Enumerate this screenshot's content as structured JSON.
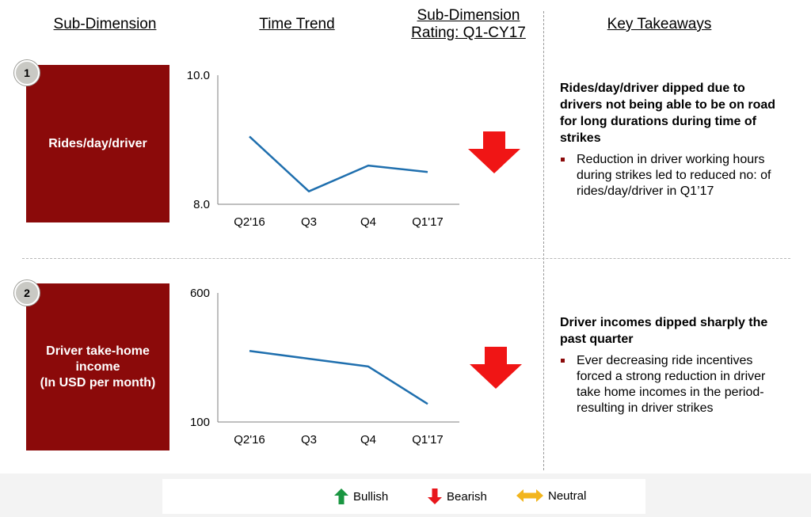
{
  "headers": {
    "sub_dimension": "Sub-Dimension",
    "time_trend": "Time Trend",
    "rating_line1": "Sub-Dimension",
    "rating_line2": "Rating: Q1-CY17",
    "key_takeaways": "Key Takeaways"
  },
  "rows": [
    {
      "number": "1",
      "label": "Rides/day/driver",
      "rating": "Bearish",
      "takeaway_title": "Rides/day/driver dipped due to drivers not being able to be on road for long durations during time of strikes",
      "takeaway_bullet": "Reduction in driver working hours during strikes led to reduced no: of rides/day/driver in Q1’17"
    },
    {
      "number": "2",
      "label": "Driver take-home income\n(In USD per month)",
      "rating": "Bearish",
      "takeaway_title": "Driver incomes dipped sharply the past quarter",
      "takeaway_bullet": "Ever decreasing ride incentives forced a strong reduction in driver take home incomes in the period- resulting in driver strikes"
    }
  ],
  "chart_data": [
    {
      "type": "line",
      "categories": [
        "Q2'16",
        "Q3",
        "Q4",
        "Q1'17"
      ],
      "series": [
        {
          "values": [
            9.05,
            8.2,
            8.6,
            8.5
          ]
        }
      ],
      "ylim": [
        8.0,
        10.0
      ],
      "yticks": [
        "10.0",
        "8.0"
      ],
      "line_color": "#1f6fae",
      "grid": false
    },
    {
      "type": "line",
      "categories": [
        "Q2'16",
        "Q3",
        "Q4",
        "Q1'17"
      ],
      "series": [
        {
          "values": [
            375,
            345,
            315,
            170
          ]
        }
      ],
      "ylim": [
        100,
        600
      ],
      "yticks": [
        "600",
        "100"
      ],
      "line_color": "#1f6fae",
      "grid": false
    }
  ],
  "legend": {
    "items": [
      {
        "label": "Bullish",
        "color": "#1a9641",
        "icon": "arrow-up-icon"
      },
      {
        "label": "Bearish",
        "color": "#e8161b",
        "icon": "arrow-down-icon"
      },
      {
        "label": "Neutral",
        "color": "#f2b51d",
        "icon": "arrow-left-right-icon"
      }
    ]
  },
  "colors": {
    "box": "#8b0a0a",
    "bearish_arrow": "#f01515"
  }
}
